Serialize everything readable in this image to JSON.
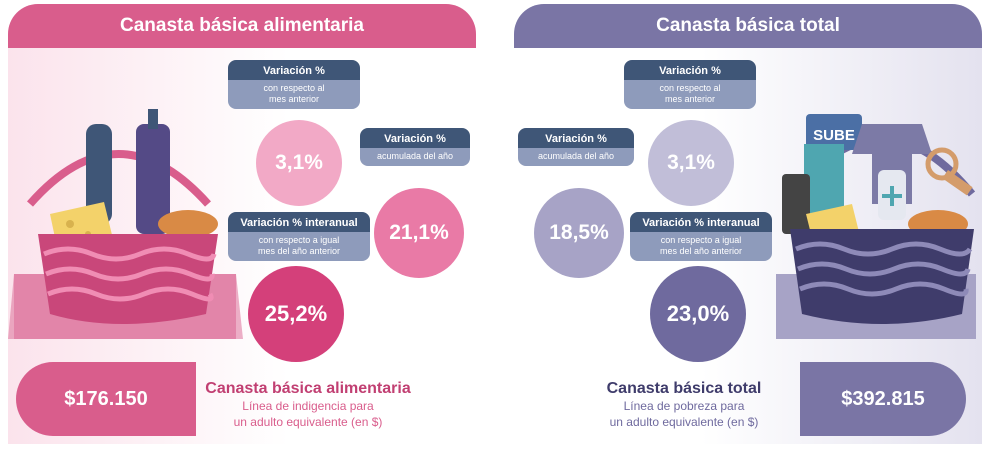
{
  "left": {
    "title": "Canasta básica alimentaria",
    "var_monthly": {
      "title": "Variación %",
      "subtitle_1": "con respecto al",
      "subtitle_2": "mes anterior",
      "value": "3,1%"
    },
    "var_ytd": {
      "title": "Variación %",
      "subtitle": "acumulada del año",
      "value": "21,1%"
    },
    "var_yoy": {
      "title": "Variación % interanual",
      "subtitle_1": "con respecto a igual",
      "subtitle_2": "mes del año anterior",
      "value": "25,2%"
    },
    "amount": "$176.150",
    "footer_title": "Canasta básica alimentaria",
    "footer_line1": "Línea de indigencia para",
    "footer_line2": "un adulto equivalente (en $)"
  },
  "right": {
    "title": "Canasta básica total",
    "var_ytd": {
      "title": "Variación %",
      "subtitle": "acumulada del año",
      "value": "18,5%"
    },
    "var_monthly": {
      "title": "Variación %",
      "subtitle_1": "con respecto al",
      "subtitle_2": "mes anterior",
      "value": "3,1%"
    },
    "var_yoy": {
      "title": "Variación % interanual",
      "subtitle_1": "con respecto a igual",
      "subtitle_2": "mes del año anterior",
      "value": "23,0%"
    },
    "amount": "$392.815",
    "footer_title": "Canasta básica total",
    "footer_line1": "Línea de pobreza para",
    "footer_line2": "un adulto equivalente (en $)",
    "card_text": "SUBE"
  },
  "colors": {
    "pink": "#d95d8c",
    "pink_light": "#f4aac8",
    "purple": "#7a75a5",
    "purple_light": "#aaa6c8",
    "navy": "#3f5677"
  }
}
